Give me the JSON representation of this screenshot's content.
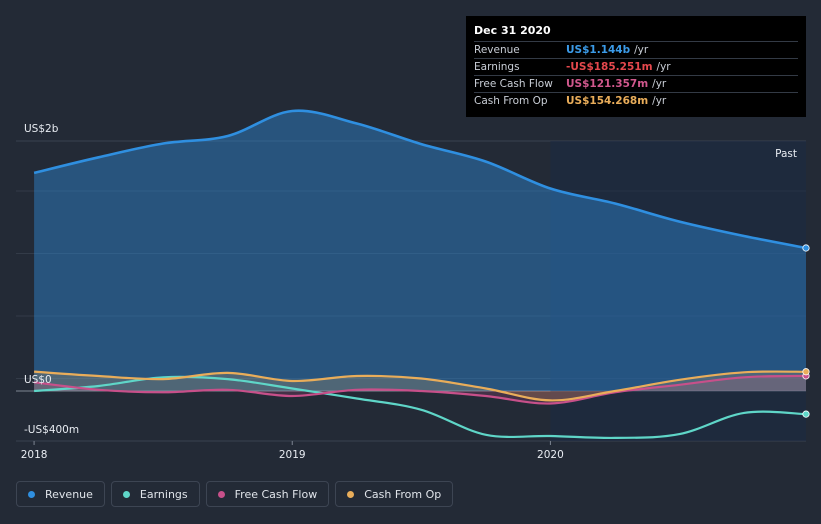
{
  "tooltip": {
    "date": "Dec 31 2020",
    "rows": [
      {
        "label": "Revenue",
        "value": "US$1.144b",
        "unit": "/yr",
        "color": "#3b9be8"
      },
      {
        "label": "Earnings",
        "value": "-US$185.251m",
        "unit": "/yr",
        "color": "#e5484d"
      },
      {
        "label": "Free Cash Flow",
        "value": "US$121.357m",
        "unit": "/yr",
        "color": "#d1588d"
      },
      {
        "label": "Cash From Op",
        "value": "US$154.268m",
        "unit": "/yr",
        "color": "#e9ad5a"
      }
    ]
  },
  "legend": [
    {
      "label": "Revenue",
      "color": "#2f8fe0"
    },
    {
      "label": "Earnings",
      "color": "#5fd6c8"
    },
    {
      "label": "Free Cash Flow",
      "color": "#c7508a"
    },
    {
      "label": "Cash From Op",
      "color": "#e9ad5a"
    }
  ],
  "chart_data": {
    "type": "line",
    "y_labels": {
      "top": "US$2b",
      "zero": "US$0",
      "bottom": "-US$400m"
    },
    "x_ticks": [
      {
        "label": "2018",
        "x": 2018.0
      },
      {
        "label": "2019",
        "x": 2019.0
      },
      {
        "label": "2020",
        "x": 2020.0
      }
    ],
    "past_label": "Past",
    "xlim": [
      2017.93,
      2020.99
    ],
    "ylim": [
      -400,
      2000
    ],
    "past_start": 2020.0,
    "series": [
      {
        "name": "Revenue",
        "color": "#2f8fe0",
        "fill": true,
        "x": [
          2018.0,
          2018.25,
          2018.5,
          2018.75,
          2019.0,
          2019.25,
          2019.5,
          2019.75,
          2020.0,
          2020.25,
          2020.5,
          2020.75,
          2020.99
        ],
        "values": [
          1745,
          1870,
          1980,
          2040,
          2240,
          2140,
          1975,
          1835,
          1620,
          1500,
          1355,
          1240,
          1144
        ]
      },
      {
        "name": "Earnings",
        "color": "#5fd6c8",
        "fill": false,
        "x": [
          2018.0,
          2018.25,
          2018.5,
          2018.75,
          2019.0,
          2019.25,
          2019.5,
          2019.75,
          2020.0,
          2020.25,
          2020.5,
          2020.75,
          2020.99
        ],
        "values": [
          0,
          40,
          110,
          95,
          20,
          -60,
          -150,
          -350,
          -360,
          -375,
          -345,
          -175,
          -185
        ]
      },
      {
        "name": "Free Cash Flow",
        "color": "#c7508a",
        "fill": true,
        "x": [
          2018.0,
          2018.25,
          2018.5,
          2018.75,
          2019.0,
          2019.25,
          2019.5,
          2019.75,
          2020.0,
          2020.25,
          2020.5,
          2020.75,
          2020.99
        ],
        "values": [
          70,
          10,
          -10,
          10,
          -40,
          10,
          0,
          -40,
          -100,
          -10,
          50,
          110,
          121
        ]
      },
      {
        "name": "Cash From Op",
        "color": "#e9ad5a",
        "fill": true,
        "x": [
          2018.0,
          2018.25,
          2018.5,
          2018.75,
          2019.0,
          2019.25,
          2019.5,
          2019.75,
          2020.0,
          2020.25,
          2020.5,
          2020.75,
          2020.99
        ],
        "values": [
          155,
          120,
          95,
          145,
          80,
          120,
          100,
          20,
          -75,
          0,
          90,
          150,
          154
        ]
      }
    ]
  }
}
